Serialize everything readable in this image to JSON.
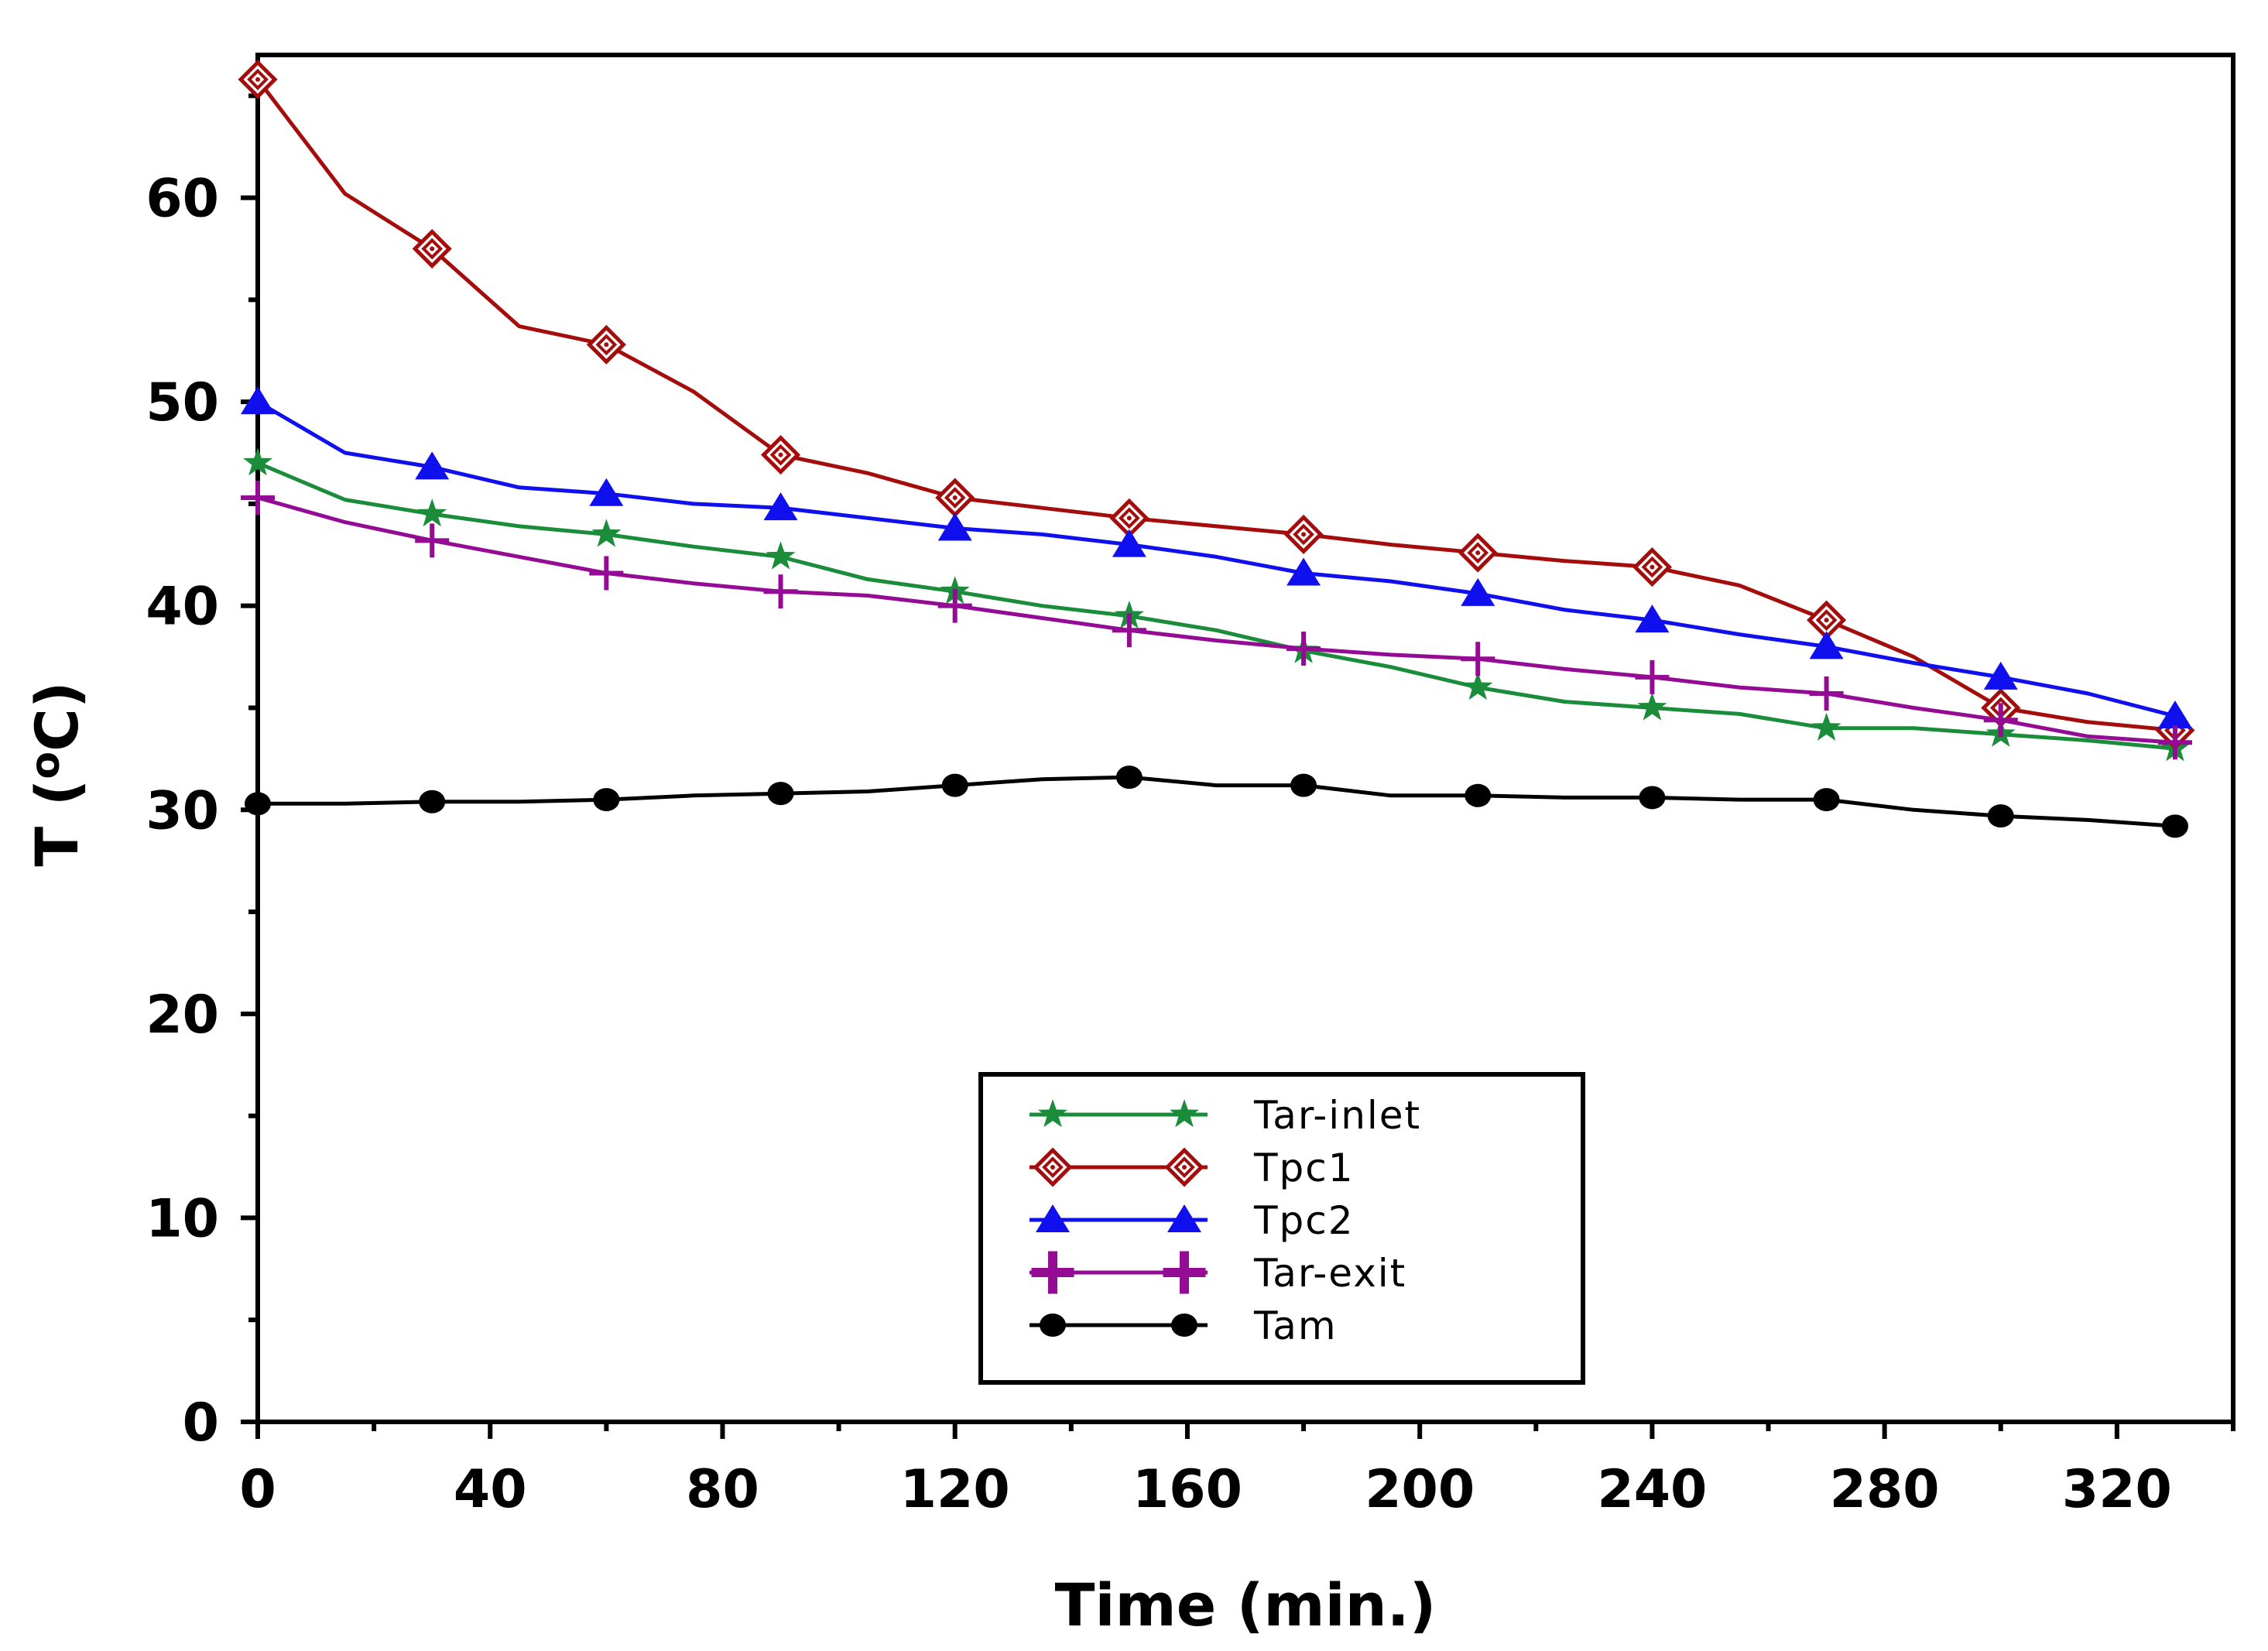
{
  "chart_data": {
    "type": "line",
    "title": "",
    "xlabel": "Time (min.)",
    "ylabel": "T (oC)",
    "xlim": [
      0,
      340
    ],
    "ylim": [
      0,
      67
    ],
    "x_ticks": [
      0,
      40,
      80,
      120,
      160,
      200,
      240,
      280,
      320
    ],
    "y_ticks": [
      0,
      10,
      20,
      30,
      40,
      50,
      60
    ],
    "x_tick_labels": [
      "0",
      "40",
      "80",
      "120",
      "160",
      "200",
      "240",
      "280",
      "320"
    ],
    "y_tick_labels": [
      "0",
      "10",
      "20",
      "30",
      "40",
      "50",
      "60"
    ],
    "grid": false,
    "legend_position": "bottom-center",
    "series": [
      {
        "name": "Tar-inlet",
        "color": "#1a8c3a",
        "marker": "star",
        "x": [
          0,
          15,
          30,
          45,
          60,
          75,
          90,
          105,
          120,
          135,
          150,
          165,
          180,
          195,
          210,
          225,
          240,
          255,
          270,
          285,
          300,
          315,
          330
        ],
        "values": [
          47.0,
          45.2,
          44.5,
          43.9,
          43.5,
          42.9,
          42.4,
          41.3,
          40.7,
          40.0,
          39.5,
          38.8,
          37.8,
          37.0,
          36.0,
          35.3,
          35.0,
          34.7,
          34.0,
          34.0,
          33.7,
          33.4,
          33.0
        ]
      },
      {
        "name": "Tpc1",
        "color": "#a50d0d",
        "marker": "diamond",
        "x": [
          0,
          15,
          30,
          45,
          60,
          75,
          90,
          105,
          120,
          135,
          150,
          165,
          180,
          195,
          210,
          225,
          240,
          255,
          270,
          285,
          300,
          315,
          330
        ],
        "values": [
          65.8,
          60.2,
          57.5,
          53.7,
          52.8,
          50.5,
          47.4,
          46.5,
          45.3,
          44.8,
          44.3,
          43.9,
          43.5,
          43.0,
          42.6,
          42.2,
          41.9,
          41.0,
          39.3,
          37.5,
          35.0,
          34.3,
          33.9
        ]
      },
      {
        "name": "Tpc2",
        "color": "#1010ee",
        "marker": "triangle",
        "x": [
          0,
          15,
          30,
          45,
          60,
          75,
          90,
          105,
          120,
          135,
          150,
          165,
          180,
          195,
          210,
          225,
          240,
          255,
          270,
          285,
          300,
          315,
          330
        ],
        "values": [
          50.0,
          47.5,
          46.8,
          45.8,
          45.5,
          45.0,
          44.8,
          44.3,
          43.8,
          43.5,
          43.0,
          42.4,
          41.6,
          41.2,
          40.6,
          39.8,
          39.3,
          38.6,
          38.0,
          37.2,
          36.5,
          35.7,
          34.6
        ]
      },
      {
        "name": "Tar-exit",
        "color": "#940b94",
        "marker": "plus",
        "x": [
          0,
          15,
          30,
          45,
          60,
          75,
          90,
          105,
          120,
          135,
          150,
          165,
          180,
          195,
          210,
          225,
          240,
          255,
          270,
          285,
          300,
          315,
          330
        ],
        "values": [
          45.3,
          44.1,
          43.2,
          42.4,
          41.6,
          41.1,
          40.7,
          40.5,
          40.0,
          39.4,
          38.8,
          38.3,
          37.9,
          37.6,
          37.4,
          36.9,
          36.5,
          36.0,
          35.7,
          35.0,
          34.4,
          33.6,
          33.3
        ]
      },
      {
        "name": "Tam",
        "color": "#000000",
        "marker": "circle",
        "x": [
          0,
          15,
          30,
          45,
          60,
          75,
          90,
          105,
          120,
          135,
          150,
          165,
          180,
          195,
          210,
          225,
          240,
          255,
          270,
          285,
          300,
          315,
          330
        ],
        "values": [
          30.3,
          30.3,
          30.4,
          30.4,
          30.5,
          30.7,
          30.8,
          30.9,
          31.2,
          31.5,
          31.6,
          31.2,
          31.2,
          30.7,
          30.7,
          30.6,
          30.6,
          30.5,
          30.5,
          30.0,
          29.7,
          29.5,
          29.2
        ]
      }
    ]
  }
}
